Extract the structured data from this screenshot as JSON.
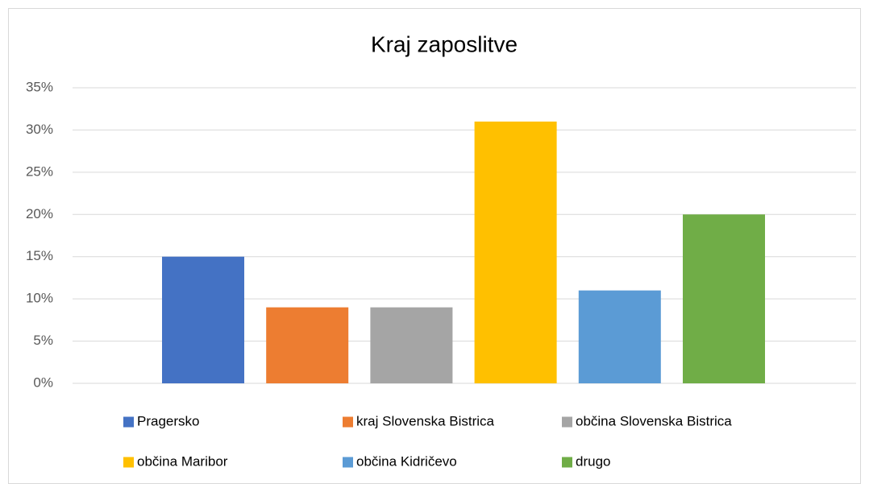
{
  "chart_data": {
    "type": "bar",
    "title": "Kraj zaposlitve",
    "series": [
      {
        "name": "Pragersko",
        "color": "#4472c4",
        "values": [
          15
        ]
      },
      {
        "name": "kraj Slovenska Bistrica",
        "color": "#ed7d31",
        "values": [
          9
        ]
      },
      {
        "name": "občina Slovenska Bistrica",
        "color": "#a5a5a5",
        "values": [
          9
        ]
      },
      {
        "name": "občina Maribor",
        "color": "#ffc000",
        "values": [
          31
        ]
      },
      {
        "name": "občina Kidričevo",
        "color": "#5b9bd5",
        "values": [
          11
        ]
      },
      {
        "name": "drugo",
        "color": "#70ad47",
        "values": [
          20
        ]
      }
    ],
    "ylim": [
      0,
      35
    ],
    "yticks": [
      {
        "value": 0,
        "label": "0%"
      },
      {
        "value": 5,
        "label": "5%"
      },
      {
        "value": 10,
        "label": "10%"
      },
      {
        "value": 15,
        "label": "15%"
      },
      {
        "value": 20,
        "label": "20%"
      },
      {
        "value": 25,
        "label": "25%"
      },
      {
        "value": 30,
        "label": "30%"
      },
      {
        "value": 35,
        "label": "35%"
      }
    ],
    "grid": true,
    "legend": "bottom"
  }
}
